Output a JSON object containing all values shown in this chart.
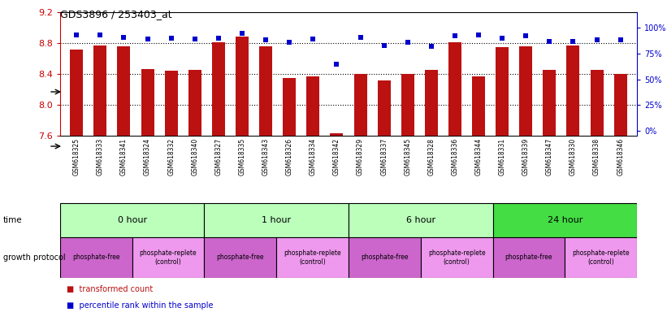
{
  "title": "GDS3896 / 253403_at",
  "samples": [
    "GSM618325",
    "GSM618333",
    "GSM618341",
    "GSM618324",
    "GSM618332",
    "GSM618340",
    "GSM618327",
    "GSM618335",
    "GSM618343",
    "GSM618326",
    "GSM618334",
    "GSM618342",
    "GSM618329",
    "GSM618337",
    "GSM618345",
    "GSM618328",
    "GSM618336",
    "GSM618344",
    "GSM618331",
    "GSM618339",
    "GSM618347",
    "GSM618330",
    "GSM618338",
    "GSM618346"
  ],
  "bar_values": [
    8.72,
    8.77,
    8.76,
    8.47,
    8.44,
    8.45,
    8.81,
    8.89,
    8.76,
    8.35,
    8.37,
    7.63,
    8.4,
    8.32,
    8.4,
    8.45,
    8.81,
    8.37,
    8.75,
    8.76,
    8.46,
    8.77,
    8.46,
    8.4
  ],
  "percentile_values": [
    93,
    93,
    91,
    89,
    90,
    89,
    90,
    95,
    88,
    86,
    89,
    65,
    91,
    83,
    86,
    82,
    92,
    93,
    90,
    92,
    87,
    87,
    88,
    88
  ],
  "time_groups": [
    {
      "label": "0 hour",
      "start": 0,
      "end": 6,
      "color": "#bbffbb"
    },
    {
      "label": "1 hour",
      "start": 6,
      "end": 12,
      "color": "#bbffbb"
    },
    {
      "label": "6 hour",
      "start": 12,
      "end": 18,
      "color": "#bbffbb"
    },
    {
      "label": "24 hour",
      "start": 18,
      "end": 24,
      "color": "#44dd44"
    }
  ],
  "protocol_groups": [
    {
      "label": "phosphate-free",
      "start": 0,
      "end": 3,
      "color": "#cc66cc"
    },
    {
      "label": "phosphate-replete\n(control)",
      "start": 3,
      "end": 6,
      "color": "#ee99ee"
    },
    {
      "label": "phosphate-free",
      "start": 6,
      "end": 9,
      "color": "#cc66cc"
    },
    {
      "label": "phosphate-replete\n(control)",
      "start": 9,
      "end": 12,
      "color": "#ee99ee"
    },
    {
      "label": "phosphate-free",
      "start": 12,
      "end": 15,
      "color": "#cc66cc"
    },
    {
      "label": "phosphate-replete\n(control)",
      "start": 15,
      "end": 18,
      "color": "#ee99ee"
    },
    {
      "label": "phosphate-free",
      "start": 18,
      "end": 21,
      "color": "#cc66cc"
    },
    {
      "label": "phosphate-replete\n(control)",
      "start": 21,
      "end": 24,
      "color": "#ee99ee"
    }
  ],
  "ylim": [
    7.6,
    9.2
  ],
  "yticks": [
    7.6,
    8.0,
    8.4,
    8.8,
    9.2
  ],
  "percentile_yticks": [
    0,
    25,
    50,
    75,
    100
  ],
  "bar_color": "#bb1111",
  "percentile_color": "#0000cc",
  "background_color": "#ffffff",
  "dotted_lines": [
    8.0,
    8.4,
    8.8
  ],
  "title_color": "#333333",
  "left_axis_color": "#cc0000",
  "right_axis_color": "#0000cc",
  "tick_label_bg": "#cccccc"
}
